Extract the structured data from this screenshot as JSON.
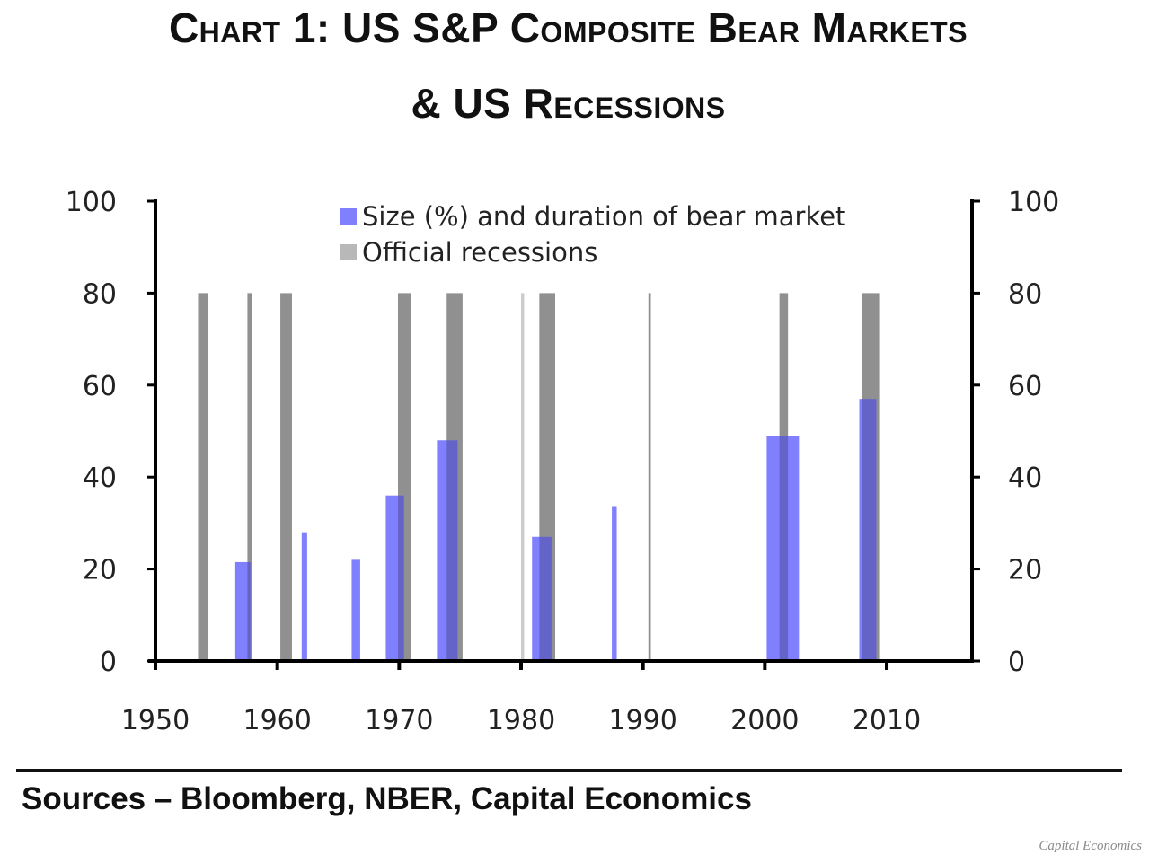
{
  "header": {
    "title_line1": "Chart 1: US S&P Composite Bear Markets",
    "title_line2": "& US Recessions"
  },
  "footer": {
    "sources": "Sources – Bloomberg, NBER, Capital Economics",
    "watermark": "Capital Economics"
  },
  "colors": {
    "bear_market": "#8080FF",
    "recession": "#B8B8B8",
    "recession_light": "#E4E4E4",
    "axis": "#000000"
  },
  "chart_data": {
    "type": "bar",
    "title": "Chart 1: US S&P Composite Bear Markets & US Recessions",
    "xlabel": "",
    "ylabel": "",
    "y2label": "",
    "xlim": [
      1950,
      2017
    ],
    "ylim": [
      0,
      100
    ],
    "y2lim": [
      0,
      100
    ],
    "x_ticks": [
      "1950",
      "1960",
      "1970",
      "1980",
      "1990",
      "2000",
      "2010"
    ],
    "x_tick_values": [
      1950,
      1960,
      1970,
      1980,
      1990,
      2000,
      2010
    ],
    "y_ticks": [
      "0",
      "20",
      "40",
      "60",
      "80",
      "100"
    ],
    "y_tick_values": [
      0,
      20,
      40,
      60,
      80,
      100
    ],
    "y2_ticks": [
      "0",
      "20",
      "40",
      "60",
      "80",
      "100"
    ],
    "grid": false,
    "legend": {
      "placement": "top-center",
      "entries": [
        "Size (%) and duration of bear market",
        "Official recessions"
      ]
    },
    "series": [
      {
        "name": "Official recessions",
        "kind": "span",
        "bars": [
          {
            "start": 1953.5,
            "end": 1954.35,
            "value": 80
          },
          {
            "start": 1957.55,
            "end": 1957.9,
            "value": 80
          },
          {
            "start": 1960.25,
            "end": 1961.2,
            "value": 80
          },
          {
            "start": 1969.9,
            "end": 1970.95,
            "value": 80
          },
          {
            "start": 1973.9,
            "end": 1975.2,
            "value": 80
          },
          {
            "start": 1980.0,
            "end": 1980.25,
            "value": 80,
            "light": true
          },
          {
            "start": 1981.5,
            "end": 1982.8,
            "value": 80
          },
          {
            "start": 1990.45,
            "end": 1990.65,
            "value": 80
          },
          {
            "start": 2001.2,
            "end": 2001.9,
            "value": 80
          },
          {
            "start": 2007.95,
            "end": 2009.45,
            "value": 80
          }
        ]
      },
      {
        "name": "Size (%) and duration of bear market",
        "kind": "span",
        "bars": [
          {
            "start": 1956.55,
            "end": 1957.8,
            "value": 21.5
          },
          {
            "start": 1962.0,
            "end": 1962.45,
            "value": 28
          },
          {
            "start": 1966.1,
            "end": 1966.8,
            "value": 22
          },
          {
            "start": 1968.9,
            "end": 1970.4,
            "value": 36
          },
          {
            "start": 1973.1,
            "end": 1974.8,
            "value": 48
          },
          {
            "start": 1980.9,
            "end": 1982.5,
            "value": 27
          },
          {
            "start": 1987.45,
            "end": 1987.85,
            "value": 33.5
          },
          {
            "start": 2000.15,
            "end": 2002.8,
            "value": 49
          },
          {
            "start": 2007.75,
            "end": 2009.15,
            "value": 57
          }
        ]
      }
    ]
  }
}
